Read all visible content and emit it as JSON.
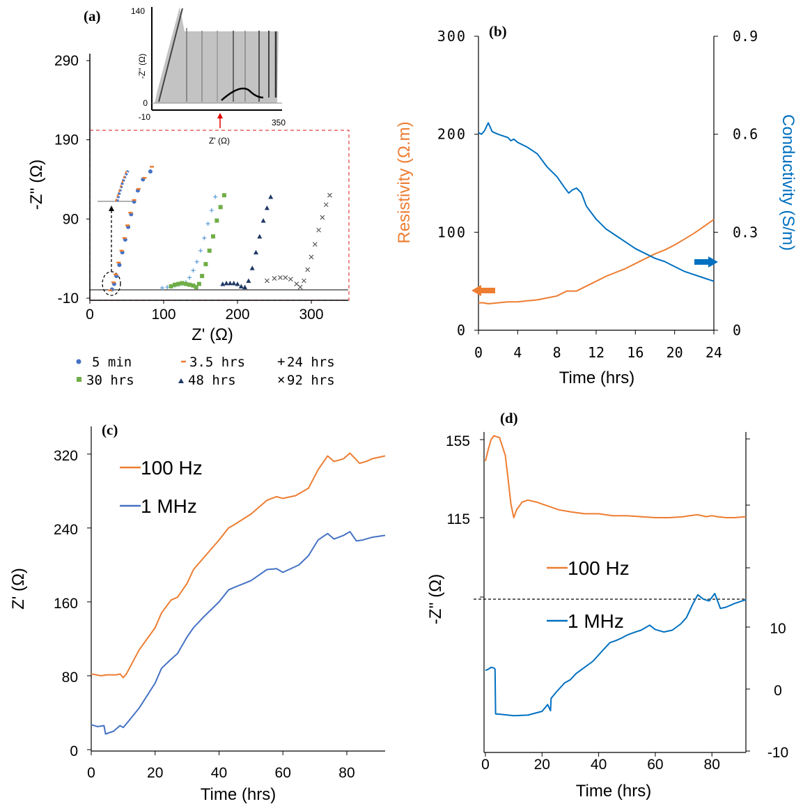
{
  "chart_data": [
    {
      "panel": "(a)",
      "type": "scatter",
      "xlabel": "Z' (Ω)",
      "ylabel": "-Z'' (Ω)",
      "xticks": [
        "0",
        "100",
        "200",
        "300"
      ],
      "yticks": [
        "-10",
        "90",
        "190",
        "290"
      ],
      "xlim": [
        0,
        350
      ],
      "ylim": [
        -10,
        290
      ],
      "inset": {
        "xlabel": "Z' (Ω)",
        "ylabel": "-Z'' (Ω)",
        "yticks": [
          "140",
          "0",
          "-10"
        ],
        "xtick_end": "350"
      },
      "legend": [
        "5 min",
        "3.5 hrs",
        "24 hrs",
        "30 hrs",
        "48 hrs",
        "92 hrs"
      ],
      "series": [
        {
          "name": "5 min",
          "color": "#4472c4",
          "marker": "circle",
          "points": [
            [
              30,
              1
            ],
            [
              33,
              8
            ],
            [
              36,
              18
            ],
            [
              40,
              32
            ],
            [
              44,
              48
            ],
            [
              48,
              64
            ],
            [
              52,
              80
            ],
            [
              56,
              96
            ],
            [
              60,
              112
            ],
            [
              65,
              126
            ],
            [
              72,
              140
            ],
            [
              82,
              150
            ]
          ]
        },
        {
          "name": "3.5 hrs",
          "color": "#ed7d31",
          "marker": "dash",
          "points": [
            [
              28,
              0
            ],
            [
              32,
              10
            ],
            [
              35,
              20
            ],
            [
              39,
              35
            ],
            [
              43,
              50
            ],
            [
              47,
              66
            ],
            [
              51,
              82
            ],
            [
              55,
              98
            ],
            [
              60,
              114
            ],
            [
              66,
              128
            ],
            [
              74,
              142
            ],
            [
              84,
              156
            ]
          ]
        },
        {
          "name": "24 hrs",
          "color": "#5b9bd5",
          "marker": "plus",
          "points": [
            [
              98,
              3
            ],
            [
              105,
              4
            ],
            [
              110,
              5
            ],
            [
              115,
              6
            ],
            [
              120,
              7
            ],
            [
              125,
              8
            ],
            [
              130,
              10
            ],
            [
              135,
              16
            ],
            [
              140,
              25
            ],
            [
              145,
              36
            ],
            [
              150,
              50
            ],
            [
              155,
              66
            ],
            [
              160,
              84
            ],
            [
              165,
              101
            ],
            [
              170,
              118
            ]
          ]
        },
        {
          "name": "30 hrs",
          "color": "#70ad47",
          "marker": "square",
          "points": [
            [
              110,
              5
            ],
            [
              115,
              7
            ],
            [
              120,
              8
            ],
            [
              125,
              9
            ],
            [
              130,
              8
            ],
            [
              135,
              7
            ],
            [
              140,
              6
            ],
            [
              144,
              4
            ],
            [
              148,
              8
            ],
            [
              152,
              18
            ],
            [
              157,
              33
            ],
            [
              162,
              50
            ],
            [
              167,
              68
            ],
            [
              172,
              88
            ],
            [
              177,
              105
            ],
            [
              182,
              120
            ]
          ]
        },
        {
          "name": "48 hrs",
          "color": "#1f3864",
          "marker": "triangle",
          "points": [
            [
              180,
              8
            ],
            [
              185,
              9
            ],
            [
              190,
              9
            ],
            [
              195,
              9
            ],
            [
              200,
              8
            ],
            [
              205,
              5
            ],
            [
              210,
              4
            ],
            [
              215,
              12
            ],
            [
              220,
              28
            ],
            [
              225,
              48
            ],
            [
              230,
              68
            ],
            [
              235,
              88
            ],
            [
              240,
              104
            ],
            [
              245,
              118
            ]
          ]
        },
        {
          "name": "92 hrs",
          "color": "#595959",
          "marker": "cross",
          "points": [
            [
              240,
              12
            ],
            [
              250,
              15
            ],
            [
              258,
              16
            ],
            [
              265,
              16
            ],
            [
              272,
              14
            ],
            [
              280,
              8
            ],
            [
              285,
              4
            ],
            [
              290,
              12
            ],
            [
              295,
              26
            ],
            [
              300,
              42
            ],
            [
              305,
              58
            ],
            [
              310,
              76
            ],
            [
              315,
              92
            ],
            [
              320,
              108
            ],
            [
              325,
              120
            ]
          ]
        }
      ]
    },
    {
      "panel": "(b)",
      "type": "line",
      "xlabel": "Time (hrs)",
      "ylabel_left": "Resistivity (Ω.m)",
      "ylabel_right": "Conductivity (S/m)",
      "xticks": [
        "0",
        "4",
        "8",
        "12",
        "16",
        "20",
        "24"
      ],
      "yticks_left": [
        "0",
        "100",
        "200",
        "300"
      ],
      "yticks_right": [
        "0",
        "0.3",
        "0.6",
        "0.9"
      ],
      "xlim": [
        0,
        24
      ],
      "ylim_left": [
        0,
        300
      ],
      "ylim_right": [
        0,
        0.9
      ],
      "series": [
        {
          "name": "Resistivity",
          "axis": "left",
          "color": "#ed7d31",
          "x": [
            0,
            0.5,
            1,
            2,
            3,
            4,
            5,
            6,
            7,
            8,
            9,
            10,
            11,
            12,
            13,
            14,
            15,
            16,
            17,
            18,
            19,
            20,
            21,
            22,
            23,
            24
          ],
          "y": [
            28,
            28,
            27,
            28,
            29,
            29,
            30,
            31,
            33,
            35,
            40,
            40,
            45,
            50,
            55,
            59,
            63,
            68,
            73,
            78,
            82,
            87,
            93,
            99,
            106,
            113
          ]
        },
        {
          "name": "Conductivity",
          "axis": "right",
          "color": "#0070c0",
          "x": [
            0,
            0.3,
            0.6,
            1,
            1.4,
            2,
            3,
            3.3,
            3.6,
            4,
            5,
            6,
            7,
            8,
            8.7,
            9.2,
            9.6,
            10,
            10.5,
            11,
            12,
            13,
            14,
            15,
            16,
            17,
            18,
            19,
            20,
            21,
            22,
            23,
            24
          ],
          "y": [
            0.605,
            0.6,
            0.61,
            0.635,
            0.608,
            0.6,
            0.59,
            0.58,
            0.585,
            0.575,
            0.56,
            0.54,
            0.5,
            0.47,
            0.44,
            0.42,
            0.43,
            0.435,
            0.42,
            0.38,
            0.34,
            0.31,
            0.29,
            0.27,
            0.25,
            0.235,
            0.22,
            0.21,
            0.195,
            0.18,
            0.17,
            0.16,
            0.15
          ]
        }
      ]
    },
    {
      "panel": "(c)",
      "type": "line",
      "xlabel": "Time (hrs)",
      "ylabel": "Z' (Ω)",
      "xticks": [
        "0",
        "20",
        "40",
        "60",
        "80"
      ],
      "yticks": [
        "0",
        "80",
        "160",
        "240",
        "320"
      ],
      "xlim": [
        0,
        92
      ],
      "ylim": [
        0,
        350
      ],
      "series": [
        {
          "name": "100 Hz",
          "color": "#ed7d31",
          "x": [
            0,
            3,
            5,
            8,
            9,
            10,
            11,
            15,
            20,
            22,
            25,
            27,
            30,
            32,
            35,
            40,
            43,
            45,
            50,
            55,
            58,
            60,
            64,
            68,
            71,
            74,
            76,
            79,
            81,
            84,
            86,
            88,
            92
          ],
          "y": [
            82,
            80,
            81,
            81,
            82,
            78,
            82,
            108,
            132,
            148,
            162,
            165,
            180,
            195,
            207,
            227,
            240,
            244,
            255,
            270,
            274,
            272,
            275,
            283,
            303,
            318,
            312,
            315,
            321,
            310,
            312,
            315,
            318
          ]
        },
        {
          "name": "1 MHz",
          "color": "#4472c4",
          "x": [
            0,
            2,
            4,
            4.5,
            7,
            9,
            10,
            11,
            15,
            20,
            22,
            25,
            27,
            30,
            32,
            35,
            40,
            43,
            45,
            50,
            55,
            58,
            60,
            65,
            68,
            71,
            74,
            76,
            79,
            81,
            83,
            85,
            88,
            92
          ],
          "y": [
            27,
            25,
            26,
            17,
            20,
            26,
            24,
            28,
            45,
            72,
            88,
            98,
            104,
            122,
            132,
            143,
            160,
            173,
            176,
            183,
            195,
            196,
            192,
            200,
            210,
            227,
            234,
            228,
            232,
            236,
            226,
            227,
            230,
            232
          ]
        }
      ]
    },
    {
      "panel": "(d)",
      "type": "line",
      "xlabel": "Time (hrs)",
      "ylabel": "-Z'' (Ω)",
      "xticks": [
        "0",
        "20",
        "40",
        "60",
        "80"
      ],
      "yticks_left": [
        "115",
        "155"
      ],
      "yticks_right": [
        "-10",
        "0",
        "10"
      ],
      "xlim": [
        0,
        92
      ],
      "ylim_left": [
        75,
        160
      ],
      "ylim_right": [
        -10,
        32
      ],
      "series": [
        {
          "name": "100 Hz",
          "axis": "left",
          "color": "#ed7d31",
          "x": [
            0,
            1,
            2,
            3,
            5,
            7,
            8,
            9,
            10,
            11,
            13,
            15,
            18,
            22,
            26,
            30,
            35,
            40,
            45,
            50,
            55,
            60,
            65,
            70,
            72,
            75,
            78,
            80,
            82,
            85,
            88,
            92
          ],
          "y": [
            144,
            150,
            155,
            157,
            156,
            147,
            135,
            122,
            115,
            119,
            123,
            124,
            123,
            121,
            119,
            118,
            117,
            117,
            116,
            116,
            115.5,
            115,
            115,
            115.5,
            116,
            116.5,
            115.5,
            116,
            115.5,
            115,
            115,
            115.5
          ]
        },
        {
          "name": "1 MHz",
          "axis": "right",
          "color": "#0070c0",
          "x": [
            0,
            1,
            2,
            3,
            3.4,
            3.6,
            6,
            10,
            15,
            20,
            22,
            23,
            23.2,
            25,
            28,
            30,
            32,
            35,
            38,
            40,
            42,
            44,
            46,
            48,
            50,
            53,
            55,
            58,
            60,
            63,
            66,
            69,
            71,
            73,
            75,
            77,
            79,
            81,
            83,
            85,
            88,
            92
          ],
          "y": [
            3,
            3.2,
            3.5,
            3.4,
            3.2,
            -4,
            -4.1,
            -4.3,
            -4.2,
            -3.6,
            -2.5,
            -3.5,
            -1.5,
            -0.5,
            1,
            1.5,
            2.5,
            3.5,
            4.5,
            5.5,
            6.5,
            7.5,
            7.8,
            8.2,
            8.7,
            9.2,
            9.5,
            10.3,
            9.6,
            9.2,
            9.5,
            10.5,
            11.5,
            13.5,
            15.2,
            14.5,
            14.2,
            15.4,
            13,
            13.2,
            13.8,
            14.4
          ]
        }
      ]
    }
  ]
}
